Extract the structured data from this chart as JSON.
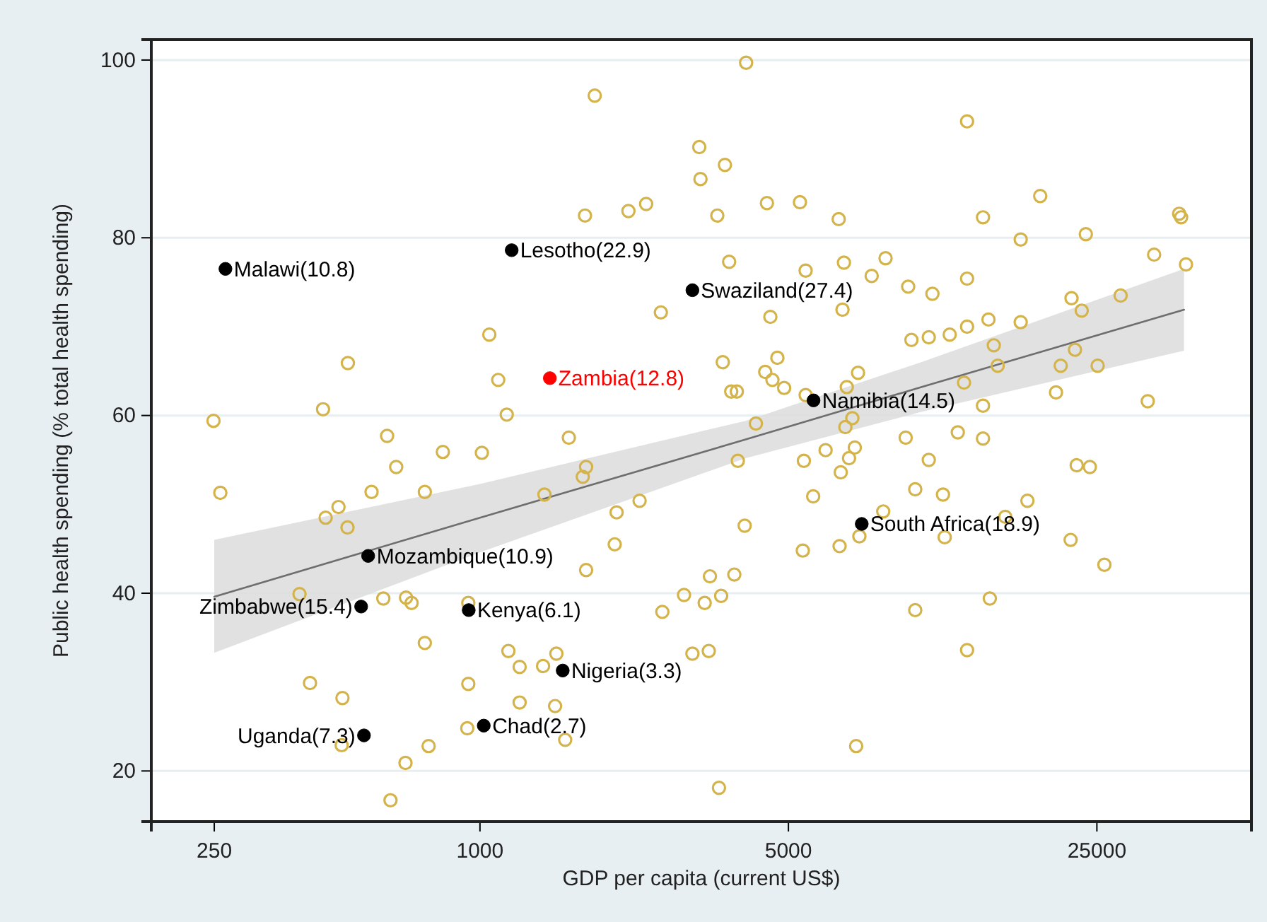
{
  "chart_data": {
    "type": "scatter",
    "xlabel": "GDP per capita (current US$)",
    "ylabel": "Public health spending (% total health spending)",
    "log": "x",
    "grid": "y",
    "marker": "circle",
    "xlim": [
      180,
      56000
    ],
    "ylim": [
      14.3,
      102.3
    ],
    "xticks": [
      250,
      1000,
      5000,
      25000
    ],
    "yticks": [
      20,
      40,
      60,
      80,
      100
    ],
    "series": [
      {
        "type": "line",
        "marker": "none",
        "color": "#6e6e6e",
        "x": [
          250,
          1000,
          4000,
          10000,
          39400
        ],
        "values": [
          39.6,
          48.5,
          57.3,
          63.2,
          71.9
        ],
        "lower": [
          33.3,
          44.6,
          55.2,
          60.4,
          67.3
        ],
        "upper": [
          46,
          52.3,
          59.4,
          66,
          76.5
        ]
      },
      {
        "color": "#d4b44a",
        "x": [
          1050,
          1100,
          1150,
          502,
          441,
          249,
          616,
          4010,
          1820,
          3140,
          3590,
          3160,
          1730,
          2170,
          2380,
          3450,
          4470,
          5310,
          6500,
          3670,
          5470,
          6680,
          8300,
          7720,
          6630,
          4550,
          2570,
          3550,
          4720,
          4430,
          4600,
          4890,
          3710,
          3820,
          5470,
          7190,
          6780,
          6980,
          6730,
          4220,
          1590,
          12700,
          18600,
          13800,
          16800,
          23600,
          38400,
          38800,
          33700,
          39800,
          9340,
          10600,
          12700,
          21900,
          23100,
          28300,
          9500,
          10400,
          11600,
          12700,
          14200,
          16800,
          14600,
          14900,
          22300,
          20700,
          25100,
          12500,
          20200,
          32600,
          13800,
          12100,
          9220,
          13800,
          646,
          824,
          1010,
          258,
          568,
          750,
          478,
          447,
          501,
          390,
          604,
          680,
          700,
          750,
          941,
          1160,
          1230,
          412,
          488,
          941,
          936,
          486,
          765,
          678,
          627,
          1230,
          1740,
          1710,
          1400,
          2040,
          2300,
          2020,
          1740,
          3840,
          5420,
          6070,
          6860,
          7070,
          6570,
          5690,
          3980,
          5390,
          6530,
          7240,
          3320,
          3770,
          2900,
          3230,
          3520,
          2590,
          3030,
          3300,
          1390,
          1490,
          1480,
          1560,
          7120,
          3480,
          10400,
          22500,
          24100,
          9690,
          11200,
          17400,
          15500,
          11300,
          21800,
          26000,
          14300,
          9690,
          12700,
          8200
        ],
        "values": [
          69.1,
          64,
          60.1,
          65.9,
          60.7,
          59.4,
          57.7,
          99.7,
          96,
          90.2,
          88.2,
          86.6,
          82.5,
          83,
          83.8,
          82.5,
          83.9,
          84,
          82.1,
          77.3,
          76.3,
          77.2,
          77.7,
          75.7,
          71.9,
          71.1,
          71.6,
          66,
          66.5,
          64.9,
          64,
          63.1,
          62.7,
          62.7,
          62.3,
          64.8,
          63.2,
          59.7,
          58.7,
          59.1,
          57.5,
          93.1,
          84.7,
          82.3,
          79.8,
          80.4,
          82.7,
          82.3,
          78.1,
          77,
          74.5,
          73.7,
          75.4,
          73.2,
          71.8,
          73.5,
          68.5,
          68.8,
          69.1,
          70,
          70.8,
          70.5,
          67.9,
          65.6,
          67.4,
          65.6,
          65.6,
          63.7,
          62.6,
          61.6,
          61.1,
          58.1,
          57.5,
          57.4,
          54.2,
          55.9,
          55.8,
          51.3,
          51.4,
          51.4,
          49.7,
          48.5,
          47.4,
          39.9,
          39.4,
          39.5,
          38.9,
          34.4,
          38.9,
          33.5,
          31.7,
          29.9,
          28.2,
          29.8,
          24.8,
          22.9,
          22.8,
          20.9,
          16.7,
          27.7,
          54.2,
          53.1,
          51.1,
          49.1,
          50.4,
          45.5,
          42.6,
          54.9,
          54.9,
          56.1,
          55.2,
          56.4,
          53.6,
          50.9,
          47.6,
          44.8,
          45.3,
          46.4,
          41.9,
          42.1,
          39.8,
          38.9,
          39.7,
          37.9,
          33.2,
          33.5,
          31.8,
          33.2,
          27.3,
          23.5,
          22.8,
          18.1,
          55,
          54.4,
          54.2,
          51.7,
          51.1,
          50.4,
          48.6,
          46.3,
          46,
          43.2,
          39.4,
          38.1,
          33.6,
          49.2
        ]
      },
      {
        "color": "#000000",
        "x": [
          265,
          1180,
          3030,
          5700,
          7330,
          558,
          943,
          1020,
          1540,
          538,
          546
        ],
        "values": [
          76.5,
          78.6,
          74.1,
          61.7,
          47.8,
          44.2,
          38.1,
          25.1,
          31.3,
          38.5,
          24
        ]
      },
      {
        "color": "#ff0000",
        "x": [
          1440
        ],
        "values": [
          64.2
        ]
      }
    ],
    "annotations": [
      {
        "text": "Malawi(10.8)",
        "x": 265,
        "y": 76.5
      },
      {
        "text": "Lesotho(22.9)",
        "x": 1180,
        "y": 78.6
      },
      {
        "text": "Swaziland(27.4)",
        "x": 3030,
        "y": 74.1
      },
      {
        "text": "Zambia(12.8)",
        "x": 1440,
        "y": 64.2
      },
      {
        "text": "Namibia(14.5)",
        "x": 5700,
        "y": 61.7
      },
      {
        "text": "South Africa(18.9)",
        "x": 7330,
        "y": 47.8
      },
      {
        "text": "Mozambique(10.9)",
        "x": 558,
        "y": 44.2
      },
      {
        "text": "Kenya(6.1)",
        "x": 943,
        "y": 38.1
      },
      {
        "text": "Chad(2.7)",
        "x": 1020,
        "y": 25.1
      },
      {
        "text": "Nigeria(3.3)",
        "x": 1540,
        "y": 31.3
      },
      {
        "text": "Zimbabwe(15.4)",
        "x": 538,
        "y": 38.5
      },
      {
        "text": "Uganda(7.3)",
        "x": 546,
        "y": 24
      }
    ]
  }
}
